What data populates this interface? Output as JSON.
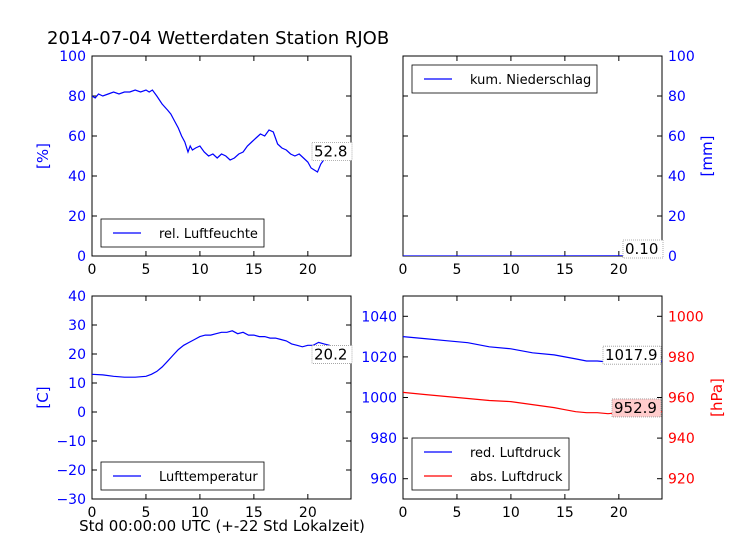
{
  "title": "2014-07-04 Wetterdaten Station RJOB",
  "xlabel": "Std 00:00:00 UTC (+-22 Std Lokalzeit)",
  "colors": {
    "blue": "#0000ff",
    "red": "#ff0000",
    "black": "#000000"
  },
  "chart_data": [
    {
      "id": "humidity",
      "type": "line",
      "xlim": [
        0,
        24
      ],
      "ylim": [
        0,
        100
      ],
      "xticks": [
        0,
        5,
        10,
        15,
        20
      ],
      "yticks": [
        0,
        20,
        40,
        60,
        80,
        100
      ],
      "ylabel": "[%]",
      "legend": "rel. Luftfeuchte",
      "legend_position": "lower-left",
      "last_value": "52.8",
      "series": [
        {
          "name": "rel. Luftfeuchte",
          "color": "#0000ff",
          "x": [
            0,
            0.3,
            0.6,
            1,
            1.5,
            2,
            2.5,
            3,
            3.5,
            4,
            4.5,
            5,
            5.3,
            5.6,
            6,
            6.5,
            7,
            7.3,
            7.6,
            8,
            8.3,
            8.6,
            8.9,
            9.1,
            9.3,
            9.6,
            10,
            10.4,
            10.8,
            11.2,
            11.6,
            12,
            12.4,
            12.8,
            13.2,
            13.6,
            14,
            14.4,
            14.8,
            15.2,
            15.6,
            16,
            16.4,
            16.8,
            17.2,
            17.6,
            18,
            18.4,
            18.8,
            19.2,
            19.6,
            20,
            20.3,
            20.6,
            20.9,
            21.2,
            21.6,
            22,
            22.4,
            22.8,
            23.2,
            23.6,
            24
          ],
          "values": [
            80,
            79,
            81,
            80,
            81,
            82,
            81,
            82,
            82,
            83,
            82,
            83,
            82,
            83,
            80,
            76,
            73,
            71,
            68,
            64,
            60,
            57,
            52,
            55,
            53,
            54,
            55,
            52,
            50,
            51,
            49,
            51,
            50,
            48,
            49,
            51,
            52,
            55,
            57,
            59,
            61,
            60,
            63,
            62,
            56,
            54,
            53,
            51,
            50,
            51,
            49,
            47,
            44,
            43,
            42,
            46,
            49,
            51,
            52,
            53,
            52,
            53,
            52.8
          ]
        }
      ]
    },
    {
      "id": "precip",
      "type": "line",
      "xlim": [
        0,
        24
      ],
      "ylim": [
        0,
        100
      ],
      "xticks": [
        0,
        5,
        10,
        15,
        20
      ],
      "yticks": [
        0,
        20,
        40,
        60,
        80,
        100
      ],
      "ylabel": "[mm]",
      "legend": "kum. Niederschlag",
      "legend_position": "upper-left",
      "last_value": "0.10",
      "series": [
        {
          "name": "kum. Niederschlag",
          "color": "#0000ff",
          "x": [
            0,
            24
          ],
          "values": [
            0,
            0.1
          ]
        }
      ]
    },
    {
      "id": "temperature",
      "type": "line",
      "xlim": [
        0,
        24
      ],
      "ylim": [
        -30,
        40
      ],
      "xticks": [
        0,
        5,
        10,
        15,
        20
      ],
      "yticks": [
        -30,
        -20,
        -10,
        0,
        10,
        20,
        30,
        40
      ],
      "ylabel": "[C]",
      "legend": "Lufttemperatur",
      "legend_position": "lower-left",
      "last_value": "20.2",
      "series": [
        {
          "name": "Lufttemperatur",
          "color": "#0000ff",
          "x": [
            0,
            1,
            2,
            3,
            4,
            5,
            5.5,
            6,
            6.5,
            7,
            7.5,
            8,
            8.5,
            9,
            9.5,
            10,
            10.5,
            11,
            11.5,
            12,
            12.5,
            13,
            13.5,
            14,
            14.5,
            15,
            15.5,
            16,
            16.5,
            17,
            17.5,
            18,
            18.5,
            19,
            19.5,
            20,
            20.5,
            21,
            21.5,
            22,
            22.5,
            23,
            23.5,
            24
          ],
          "values": [
            13,
            12.8,
            12.3,
            12,
            12,
            12.3,
            13,
            14,
            15.5,
            17.5,
            19.5,
            21.5,
            23,
            24,
            25,
            26,
            26.5,
            26.5,
            27,
            27.5,
            27.5,
            28,
            27,
            27.5,
            26.5,
            26.5,
            26,
            26,
            25.5,
            25.5,
            25,
            24.5,
            23.5,
            23,
            22.5,
            23,
            23,
            24,
            23.5,
            23,
            22,
            21,
            20.5,
            20.2
          ]
        }
      ]
    },
    {
      "id": "pressure",
      "type": "line",
      "xlim": [
        0,
        24
      ],
      "ylim": [
        950,
        1050
      ],
      "y2lim": [
        910,
        1010
      ],
      "xticks": [
        0,
        5,
        10,
        15,
        20
      ],
      "yticks": [
        960,
        980,
        1000,
        1020,
        1040
      ],
      "y2ticks": [
        920,
        940,
        960,
        980,
        1000
      ],
      "y2label": "[hPa]",
      "legend_position": "lower-left",
      "series": [
        {
          "name": "red. Luftdruck",
          "color": "#0000ff",
          "axis": "left",
          "last_value": "1017.9",
          "x": [
            0,
            2,
            4,
            6,
            8,
            10,
            12,
            14,
            15,
            16,
            17,
            18,
            19,
            20,
            21,
            22,
            23,
            24
          ],
          "values": [
            1030,
            1029,
            1028,
            1027,
            1025,
            1024,
            1022,
            1021,
            1020,
            1019,
            1018,
            1018,
            1017.5,
            1018,
            1018,
            1018.5,
            1018,
            1017.9
          ]
        },
        {
          "name": "abs. Luftdruck",
          "color": "#ff0000",
          "axis": "right",
          "last_value": "952.9",
          "x": [
            0,
            2,
            4,
            6,
            8,
            10,
            12,
            14,
            15,
            16,
            17,
            18,
            19,
            20,
            21,
            22,
            23,
            24
          ],
          "values": [
            962.5,
            961.5,
            960.5,
            959.5,
            958.5,
            958,
            956.5,
            955,
            954,
            953,
            952.5,
            952.5,
            952,
            952.5,
            953,
            953.5,
            953,
            952.9
          ]
        }
      ]
    }
  ]
}
